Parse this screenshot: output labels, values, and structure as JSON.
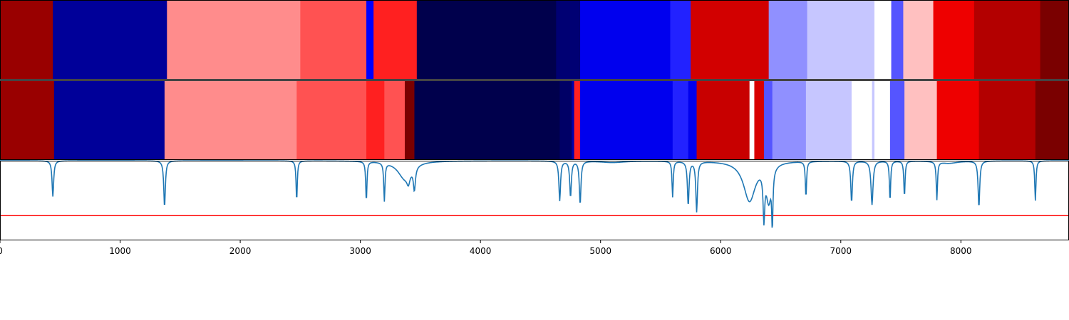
{
  "chart_data": {
    "type": "heatmap",
    "title": "",
    "xlabel": "",
    "ylabel": "",
    "xlim": [
      0,
      8900
    ],
    "xticks": [
      0,
      1000,
      2000,
      3000,
      4000,
      5000,
      6000,
      7000,
      8000
    ],
    "xtick_labels": [
      "0",
      "1000",
      "2000",
      "3000",
      "4000",
      "5000",
      "6000",
      "7000",
      "8000"
    ],
    "colormap": "seismic",
    "bands": [
      {
        "segments": [
          {
            "start": 0,
            "end": 440,
            "color": "#990000"
          },
          {
            "start": 440,
            "end": 1390,
            "color": "#000099"
          },
          {
            "start": 1390,
            "end": 2500,
            "color": "#ff8c8c"
          },
          {
            "start": 2500,
            "end": 3050,
            "color": "#ff5252"
          },
          {
            "start": 3050,
            "end": 3110,
            "color": "#0000ff"
          },
          {
            "start": 3110,
            "end": 3470,
            "color": "#ff2020"
          },
          {
            "start": 3470,
            "end": 4630,
            "color": "#00004c"
          },
          {
            "start": 4630,
            "end": 4830,
            "color": "#000073"
          },
          {
            "start": 4830,
            "end": 5580,
            "color": "#0000ee"
          },
          {
            "start": 5580,
            "end": 5750,
            "color": "#2222ff"
          },
          {
            "start": 5750,
            "end": 6400,
            "color": "#d20000"
          },
          {
            "start": 6400,
            "end": 6720,
            "color": "#9090ff"
          },
          {
            "start": 6720,
            "end": 7280,
            "color": "#c6c6ff"
          },
          {
            "start": 7280,
            "end": 7420,
            "color": "#ffffff"
          },
          {
            "start": 7420,
            "end": 7520,
            "color": "#5555ff"
          },
          {
            "start": 7520,
            "end": 7770,
            "color": "#ffc0c0"
          },
          {
            "start": 7770,
            "end": 8110,
            "color": "#ee0000"
          },
          {
            "start": 8110,
            "end": 8660,
            "color": "#b30000"
          },
          {
            "start": 8660,
            "end": 8900,
            "color": "#7a0000"
          }
        ]
      },
      {
        "segments": [
          {
            "start": 0,
            "end": 450,
            "color": "#990000"
          },
          {
            "start": 450,
            "end": 1370,
            "color": "#000099"
          },
          {
            "start": 1370,
            "end": 2470,
            "color": "#ff8c8c"
          },
          {
            "start": 2470,
            "end": 3050,
            "color": "#ff5252"
          },
          {
            "start": 3050,
            "end": 3200,
            "color": "#ff2020"
          },
          {
            "start": 3200,
            "end": 3370,
            "color": "#ff5252"
          },
          {
            "start": 3370,
            "end": 3450,
            "color": "#7a0000"
          },
          {
            "start": 3450,
            "end": 4660,
            "color": "#00004c"
          },
          {
            "start": 4660,
            "end": 4760,
            "color": "#000066"
          },
          {
            "start": 4760,
            "end": 4780,
            "color": "#0000aa"
          },
          {
            "start": 4780,
            "end": 4830,
            "color": "#ff2020"
          },
          {
            "start": 4830,
            "end": 5600,
            "color": "#0000ee"
          },
          {
            "start": 5600,
            "end": 5730,
            "color": "#2222ff"
          },
          {
            "start": 5730,
            "end": 5800,
            "color": "#0000ee"
          },
          {
            "start": 5800,
            "end": 6240,
            "color": "#c80000"
          },
          {
            "start": 6240,
            "end": 6280,
            "color": "#ffffff"
          },
          {
            "start": 6280,
            "end": 6360,
            "color": "#d80000"
          },
          {
            "start": 6360,
            "end": 6430,
            "color": "#5555ff"
          },
          {
            "start": 6430,
            "end": 6710,
            "color": "#9090ff"
          },
          {
            "start": 6710,
            "end": 7090,
            "color": "#c6c6ff"
          },
          {
            "start": 7090,
            "end": 7260,
            "color": "#ffffff"
          },
          {
            "start": 7260,
            "end": 7280,
            "color": "#c6c6ff"
          },
          {
            "start": 7280,
            "end": 7410,
            "color": "#ffffff"
          },
          {
            "start": 7410,
            "end": 7530,
            "color": "#5555ff"
          },
          {
            "start": 7530,
            "end": 7800,
            "color": "#ffc0c0"
          },
          {
            "start": 7800,
            "end": 8150,
            "color": "#ee0000"
          },
          {
            "start": 8150,
            "end": 8620,
            "color": "#b30000"
          },
          {
            "start": 8620,
            "end": 8900,
            "color": "#7a0000"
          }
        ]
      }
    ],
    "line_panel": {
      "ylim": [
        0,
        1
      ],
      "line_color": "#1f77b4",
      "threshold": 0.31,
      "threshold_color": "#ff0000",
      "baseline": 1.0,
      "dips": [
        {
          "x": 440,
          "depth": 0.45,
          "width": 8
        },
        {
          "x": 1370,
          "depth": 0.58,
          "width": 8
        },
        {
          "x": 2470,
          "depth": 0.5,
          "width": 6
        },
        {
          "x": 3050,
          "depth": 0.5,
          "width": 6
        },
        {
          "x": 3200,
          "depth": 0.48,
          "width": 6
        },
        {
          "x": 3370,
          "depth": 0.22,
          "width": 70
        },
        {
          "x": 3400,
          "depth": 0.12,
          "width": 15
        },
        {
          "x": 3450,
          "depth": 0.28,
          "width": 10
        },
        {
          "x": 4660,
          "depth": 0.5,
          "width": 8
        },
        {
          "x": 4750,
          "depth": 0.45,
          "width": 8
        },
        {
          "x": 4830,
          "depth": 0.54,
          "width": 8
        },
        {
          "x": 5100,
          "depth": 0.02,
          "width": 120
        },
        {
          "x": 5600,
          "depth": 0.45,
          "width": 6
        },
        {
          "x": 5730,
          "depth": 0.55,
          "width": 8
        },
        {
          "x": 5800,
          "depth": 0.63,
          "width": 8
        },
        {
          "x": 6240,
          "depth": 0.5,
          "width": 60
        },
        {
          "x": 6360,
          "depth": 0.58,
          "width": 8
        },
        {
          "x": 6400,
          "depth": 0.45,
          "width": 25
        },
        {
          "x": 6430,
          "depth": 0.65,
          "width": 6
        },
        {
          "x": 6710,
          "depth": 0.45,
          "width": 6
        },
        {
          "x": 7090,
          "depth": 0.52,
          "width": 8
        },
        {
          "x": 7260,
          "depth": 0.55,
          "width": 10
        },
        {
          "x": 7410,
          "depth": 0.5,
          "width": 6
        },
        {
          "x": 7530,
          "depth": 0.45,
          "width": 6
        },
        {
          "x": 7800,
          "depth": 0.48,
          "width": 6
        },
        {
          "x": 7900,
          "depth": 0.03,
          "width": 90
        },
        {
          "x": 8150,
          "depth": 0.58,
          "width": 8
        },
        {
          "x": 8620,
          "depth": 0.5,
          "width": 6
        }
      ]
    }
  }
}
